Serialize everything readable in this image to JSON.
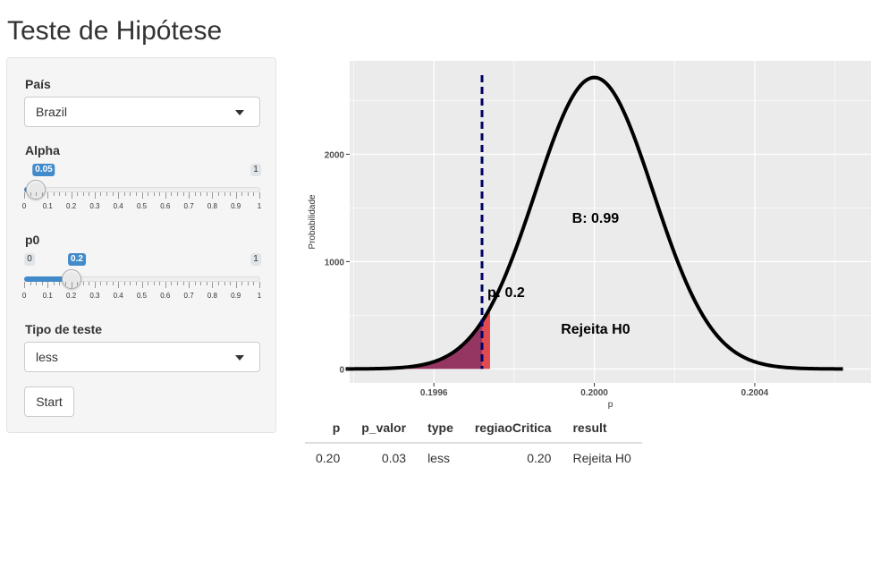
{
  "page": {
    "title": "Teste de Hipótese"
  },
  "sidebar": {
    "pais": {
      "label": "País",
      "value": "Brazil"
    },
    "alpha": {
      "label": "Alpha",
      "value": 0.05,
      "value_text": "0.05",
      "min_text": "0",
      "max_text": "1",
      "ticks": [
        "0",
        "0.1",
        "0.2",
        "0.3",
        "0.4",
        "0.5",
        "0.6",
        "0.7",
        "0.8",
        "0.9",
        "1"
      ]
    },
    "p0": {
      "label": "p0",
      "value": 0.2,
      "value_text": "0.2",
      "min_text": "0",
      "max_text": "1",
      "ticks": [
        "0",
        "0.1",
        "0.2",
        "0.3",
        "0.4",
        "0.5",
        "0.6",
        "0.7",
        "0.8",
        "0.9",
        "1"
      ]
    },
    "tipo": {
      "label": "Tipo de teste",
      "value": "less"
    },
    "start_label": "Start"
  },
  "chart_data": {
    "type": "area",
    "xlabel": "p",
    "ylabel": "Probabilidade",
    "xlim": [
      0.19939,
      0.20069
    ],
    "ylim": [
      -130,
      2870
    ],
    "x_ticks": [
      {
        "value": 0.1996,
        "label": "0.1996"
      },
      {
        "value": 0.2,
        "label": "0.2000"
      },
      {
        "value": 0.2004,
        "label": "0.2004"
      }
    ],
    "y_ticks": [
      {
        "value": 0,
        "label": "0"
      },
      {
        "value": 1000,
        "label": "1000"
      },
      {
        "value": 2000,
        "label": "2000"
      }
    ],
    "curve": {
      "mean": 0.2,
      "sd": 0.000147,
      "peak": 2715,
      "x_from": 0.19938,
      "x_to": 0.20062,
      "color": "#000000"
    },
    "critical_line": {
      "x": 0.19972,
      "color": "#000066"
    },
    "shade_left": {
      "x_to": 0.19972,
      "color": "#8b2252"
    },
    "shade_right": {
      "x_from": 0.19972,
      "x_to": 0.19974,
      "color": "#e0393e"
    },
    "annotations": [
      {
        "text": "B: 0.99",
        "x": 0.200003,
        "y": 1360
      },
      {
        "text": "p: 0.2",
        "x": 0.19978,
        "y": 670
      },
      {
        "text": "Rejeita H0",
        "x": 0.200003,
        "y": 330
      }
    ],
    "colors": {
      "panel": "#ebebeb",
      "grid": "#ffffff"
    }
  },
  "table": {
    "headers": [
      "p",
      "p_valor",
      "type",
      "regiaoCritica",
      "result"
    ],
    "rows": [
      [
        "0.20",
        "0.03",
        "less",
        "0.20",
        "Rejeita H0"
      ]
    ]
  }
}
